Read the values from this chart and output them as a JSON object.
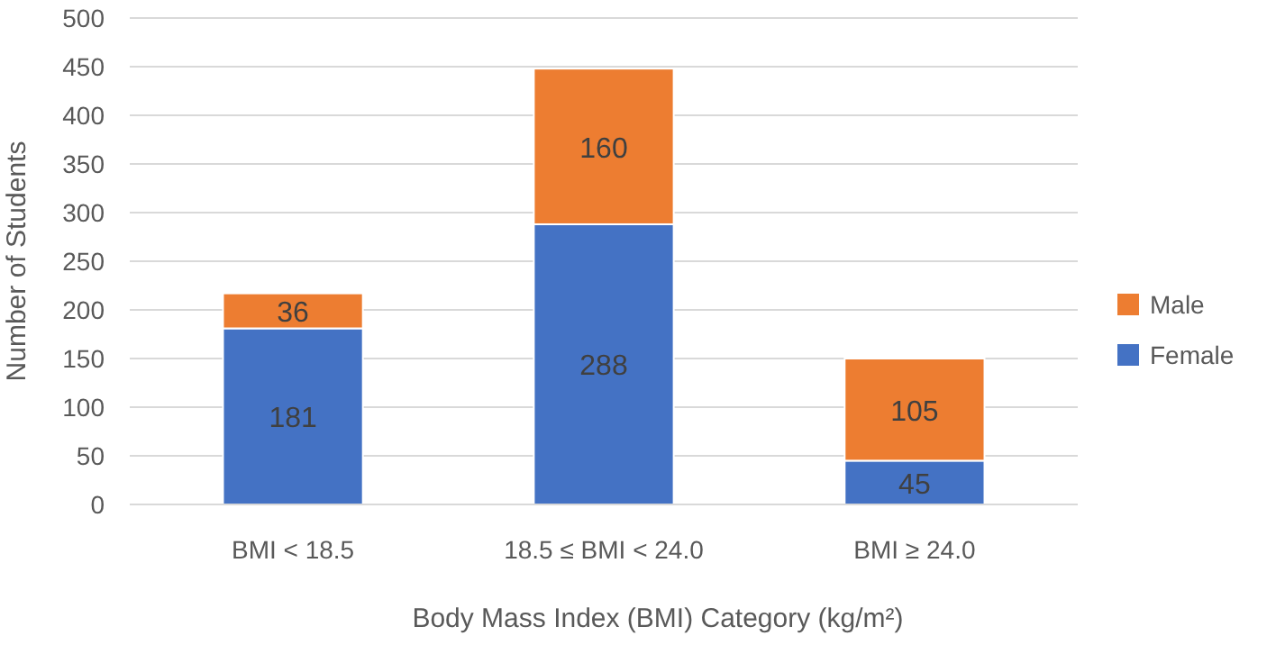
{
  "chart_data": {
    "type": "bar",
    "stacked": true,
    "xlabel": "Body Mass Index (BMI) Category (kg/m²)",
    "ylabel": "Number of Students",
    "categories": [
      "BMI < 18.5",
      "18.5 ≤ BMI < 24.0",
      "BMI ≥ 24.0"
    ],
    "series": [
      {
        "name": "Female",
        "color": "#4472c4",
        "values": [
          181,
          288,
          45
        ]
      },
      {
        "name": "Male",
        "color": "#ed7d31",
        "values": [
          36,
          160,
          105
        ]
      }
    ],
    "ylim": [
      0,
      500
    ],
    "yticks": [
      0,
      50,
      100,
      150,
      200,
      250,
      300,
      350,
      400,
      450,
      500
    ],
    "grid": "y",
    "legend": "right",
    "data_labels": true
  }
}
